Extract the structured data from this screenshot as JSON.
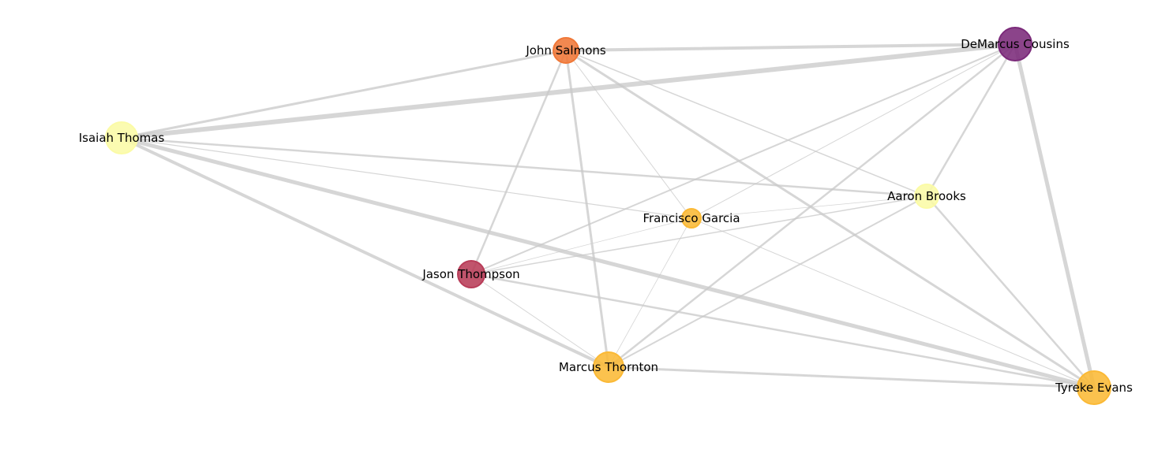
{
  "graph": {
    "nodes": [
      {
        "id": "john_salmons",
        "label": "John Salmons",
        "color": "#f07838"
      },
      {
        "id": "demarcus_cousins",
        "label": "DeMarcus Cousins",
        "color": "#7b2a7a"
      },
      {
        "id": "isaiah_thomas",
        "label": "Isaiah Thomas",
        "color": "#fbfba6"
      },
      {
        "id": "aaron_brooks",
        "label": "Aaron Brooks",
        "color": "#fbfba6"
      },
      {
        "id": "francisco_garcia",
        "label": "Francisco Garcia",
        "color": "#fbb935"
      },
      {
        "id": "jason_thompson",
        "label": "Jason Thompson",
        "color": "#b83c58"
      },
      {
        "id": "marcus_thornton",
        "label": "Marcus Thornton",
        "color": "#fbb935"
      },
      {
        "id": "tyreke_evans",
        "label": "Tyreke Evans",
        "color": "#fbb935"
      }
    ],
    "edges": [
      {
        "source": "isaiah_thomas",
        "target": "demarcus_cousins",
        "weight": 6
      },
      {
        "source": "isaiah_thomas",
        "target": "tyreke_evans",
        "weight": 5
      },
      {
        "source": "demarcus_cousins",
        "target": "tyreke_evans",
        "weight": 5
      },
      {
        "source": "john_salmons",
        "target": "demarcus_cousins",
        "weight": 4
      },
      {
        "source": "isaiah_thomas",
        "target": "marcus_thornton",
        "weight": 4
      },
      {
        "source": "isaiah_thomas",
        "target": "john_salmons",
        "weight": 3
      },
      {
        "source": "john_salmons",
        "target": "tyreke_evans",
        "weight": 3
      },
      {
        "source": "john_salmons",
        "target": "marcus_thornton",
        "weight": 3
      },
      {
        "source": "marcus_thornton",
        "target": "tyreke_evans",
        "weight": 3
      },
      {
        "source": "isaiah_thomas",
        "target": "aaron_brooks",
        "weight": 2.5
      },
      {
        "source": "jason_thompson",
        "target": "tyreke_evans",
        "weight": 2.5
      },
      {
        "source": "demarcus_cousins",
        "target": "marcus_thornton",
        "weight": 2.5
      },
      {
        "source": "demarcus_cousins",
        "target": "aaron_brooks",
        "weight": 2.5
      },
      {
        "source": "john_salmons",
        "target": "jason_thompson",
        "weight": 2.5
      },
      {
        "source": "aaron_brooks",
        "target": "tyreke_evans",
        "weight": 2.5
      },
      {
        "source": "demarcus_cousins",
        "target": "jason_thompson",
        "weight": 2
      },
      {
        "source": "aaron_brooks",
        "target": "marcus_thornton",
        "weight": 2
      },
      {
        "source": "jason_thompson",
        "target": "aaron_brooks",
        "weight": 1.5
      },
      {
        "source": "john_salmons",
        "target": "aaron_brooks",
        "weight": 1.5
      },
      {
        "source": "isaiah_thomas",
        "target": "francisco_garcia",
        "weight": 1.2
      },
      {
        "source": "francisco_garcia",
        "target": "demarcus_cousins",
        "weight": 1
      },
      {
        "source": "francisco_garcia",
        "target": "tyreke_evans",
        "weight": 1
      },
      {
        "source": "john_salmons",
        "target": "francisco_garcia",
        "weight": 1
      },
      {
        "source": "jason_thompson",
        "target": "marcus_thornton",
        "weight": 1
      },
      {
        "source": "francisco_garcia",
        "target": "aaron_brooks",
        "weight": 0.8
      },
      {
        "source": "jason_thompson",
        "target": "francisco_garcia",
        "weight": 0.8
      },
      {
        "source": "francisco_garcia",
        "target": "marcus_thornton",
        "weight": 0.8
      }
    ]
  }
}
